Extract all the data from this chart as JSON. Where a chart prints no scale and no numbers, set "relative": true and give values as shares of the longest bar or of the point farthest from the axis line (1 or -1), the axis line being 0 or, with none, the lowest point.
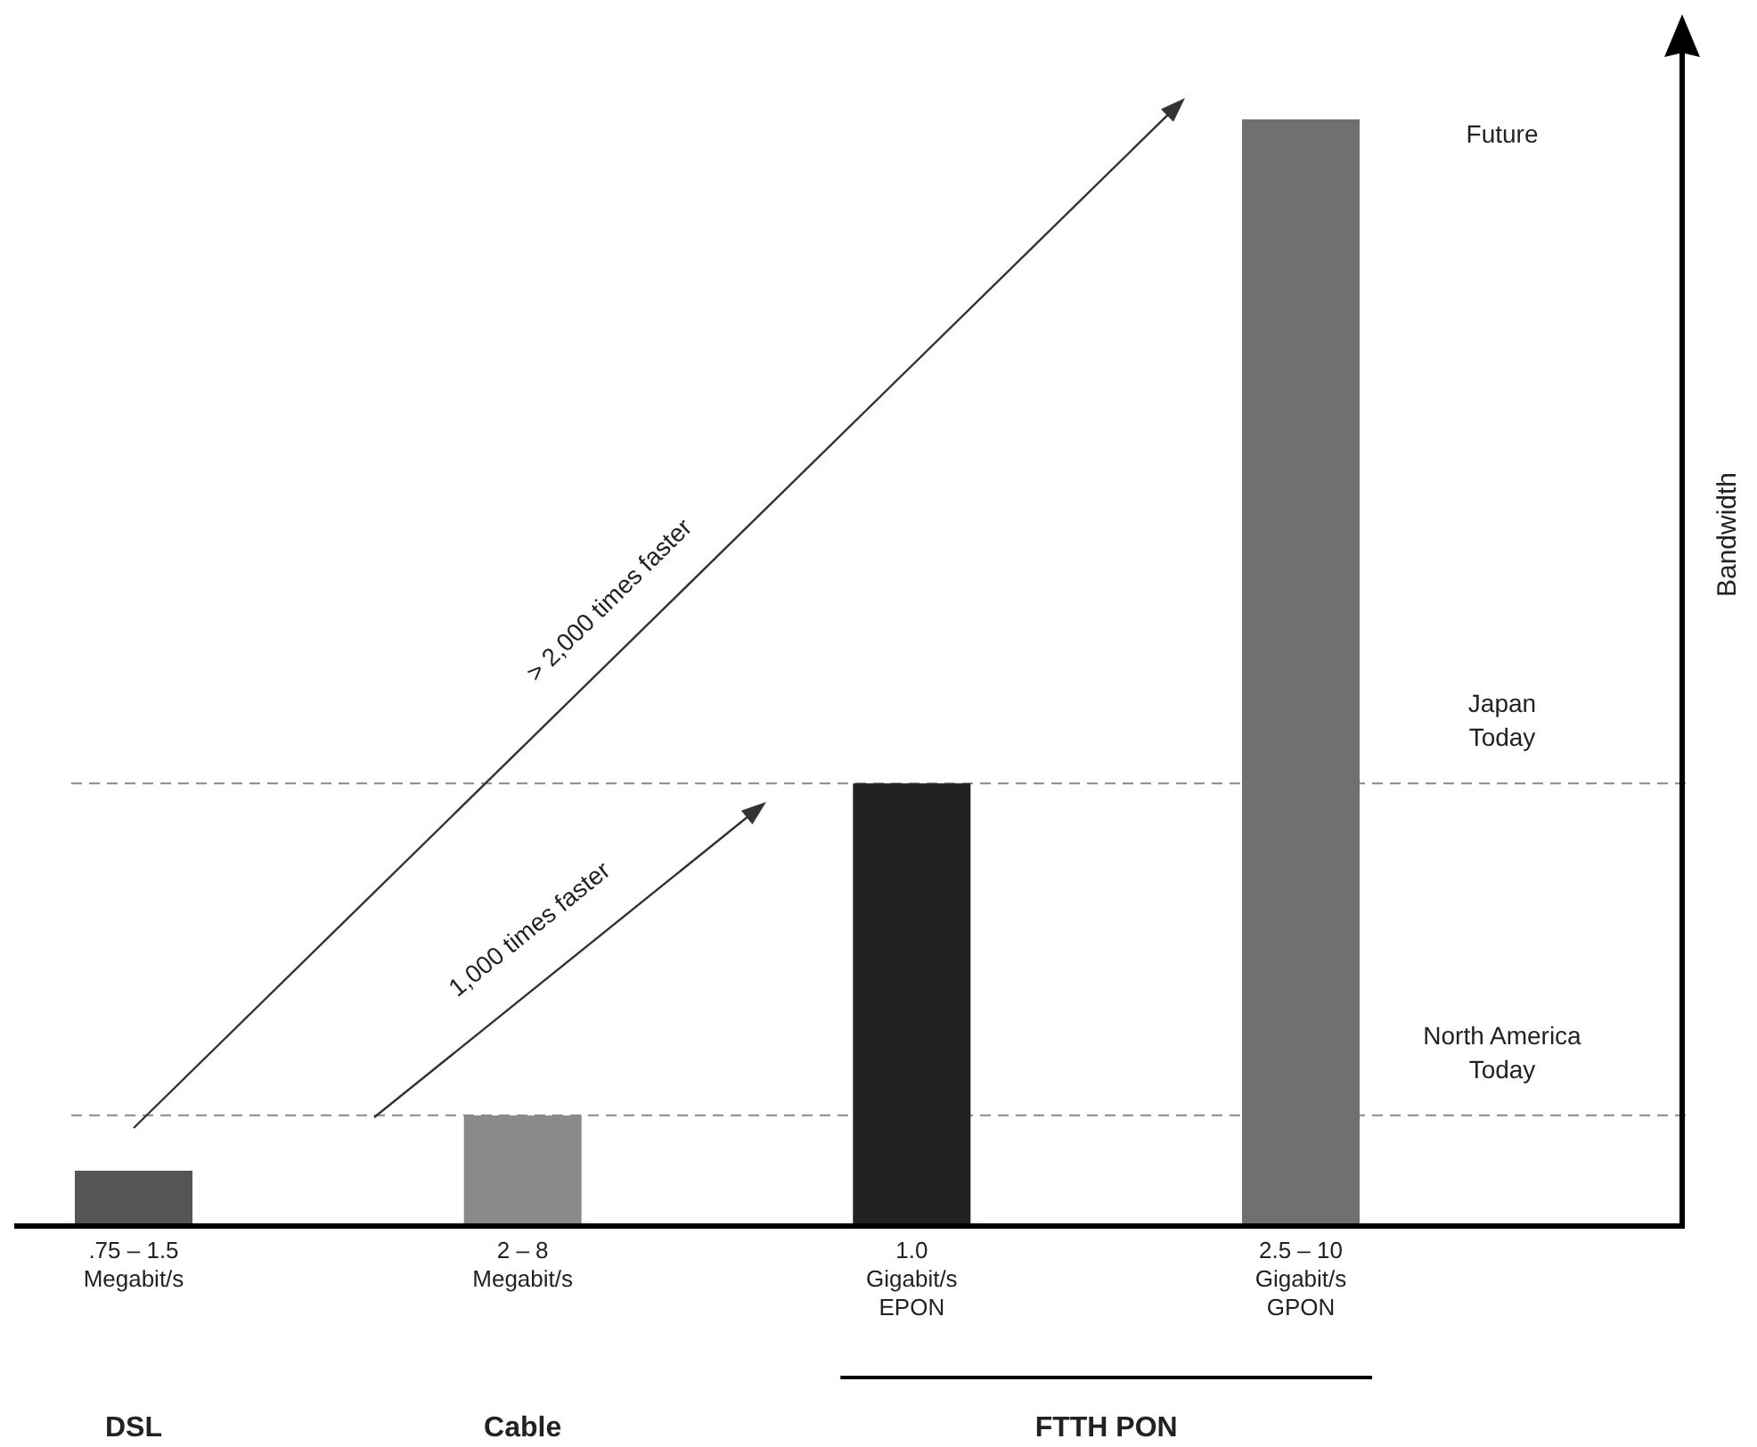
{
  "chart_data": {
    "type": "bar",
    "relative": true,
    "ylabel": "Bandwidth",
    "categories": [
      ".75 – 1.5\nMegabit/s",
      "2 – 8\nMegabit/s",
      "1.0\nGigabit/s\nEPON",
      "2.5 – 10\nGigabit/s\nGPON"
    ],
    "values": [
      0.05,
      0.1,
      0.4,
      1
    ],
    "colors": [
      "#555555",
      "#8a8a8a",
      "#222222",
      "#707070"
    ],
    "ref_lines": [
      {
        "axis": "y",
        "value": 0.1,
        "label": "North America Today",
        "color": "#888888",
        "line_style": "dashed"
      },
      {
        "axis": "y",
        "value": 0.4,
        "label": "Japan Today",
        "color": "#888888",
        "line_style": "dashed"
      }
    ],
    "annotations": [
      "> 2,000 times faster",
      "1,000 times faster",
      "Future",
      "DSL",
      "Cable",
      "FTTH PON"
    ]
  }
}
